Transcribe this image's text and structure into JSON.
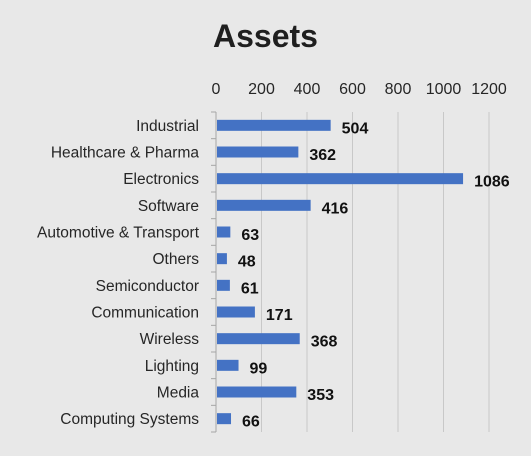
{
  "chart_data": {
    "type": "bar",
    "orientation": "horizontal",
    "title": "Assets",
    "xlabel": "",
    "ylabel": "",
    "categories": [
      "Industrial",
      "Healthcare & Pharma",
      "Electronics",
      "Software",
      "Automotive & Transport",
      "Others",
      "Semiconductor",
      "Communication",
      "Wireless",
      "Lighting",
      "Media",
      "Computing Systems"
    ],
    "values": [
      504,
      362,
      1086,
      416,
      63,
      48,
      61,
      171,
      368,
      99,
      353,
      66
    ],
    "xlim": [
      0,
      1200
    ],
    "xticks": [
      0,
      200,
      400,
      600,
      800,
      1000,
      1200
    ],
    "axis_position": "top",
    "grid": true,
    "data_labels": true,
    "legend": "none",
    "bar_color": "#4472c4",
    "grid_color": "#c8c8c8",
    "background_color": "#e8e8e8"
  }
}
